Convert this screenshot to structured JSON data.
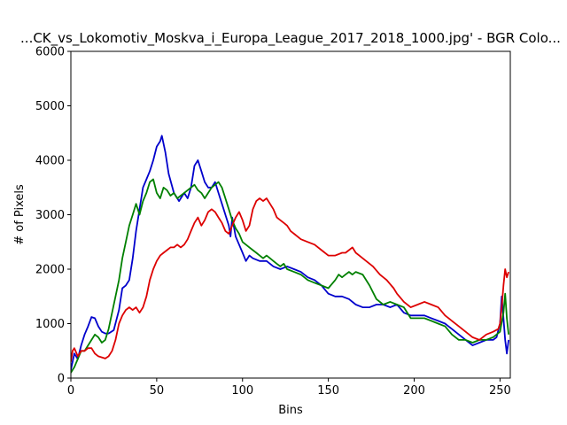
{
  "chart_data": {
    "type": "line",
    "title": "...CK_vs_Lokomotiv_Moskva_i_Europa_League_2017_2018_1000.jpg' - BGR Colo...",
    "xlabel": "Bins",
    "ylabel": "# of Pixels",
    "xlim": [
      0,
      256
    ],
    "ylim": [
      0,
      6000
    ],
    "xticks": [
      0,
      50,
      100,
      150,
      200,
      250
    ],
    "yticks": [
      0,
      1000,
      2000,
      3000,
      4000,
      5000,
      6000
    ],
    "grid": false,
    "legend": "none",
    "series": [
      {
        "color": "#0000cc",
        "points": [
          [
            0,
            150
          ],
          [
            2,
            450
          ],
          [
            4,
            350
          ],
          [
            6,
            600
          ],
          [
            8,
            800
          ],
          [
            10,
            950
          ],
          [
            12,
            1120
          ],
          [
            14,
            1100
          ],
          [
            16,
            950
          ],
          [
            18,
            850
          ],
          [
            20,
            820
          ],
          [
            22,
            820
          ],
          [
            25,
            880
          ],
          [
            28,
            1250
          ],
          [
            30,
            1650
          ],
          [
            32,
            1700
          ],
          [
            34,
            1800
          ],
          [
            36,
            2200
          ],
          [
            38,
            2700
          ],
          [
            40,
            3100
          ],
          [
            42,
            3500
          ],
          [
            44,
            3650
          ],
          [
            46,
            3800
          ],
          [
            48,
            4000
          ],
          [
            50,
            4250
          ],
          [
            52,
            4350
          ],
          [
            53,
            4450
          ],
          [
            55,
            4150
          ],
          [
            57,
            3750
          ],
          [
            60,
            3400
          ],
          [
            63,
            3250
          ],
          [
            66,
            3400
          ],
          [
            68,
            3300
          ],
          [
            70,
            3500
          ],
          [
            72,
            3900
          ],
          [
            74,
            4000
          ],
          [
            76,
            3800
          ],
          [
            78,
            3600
          ],
          [
            80,
            3500
          ],
          [
            82,
            3500
          ],
          [
            84,
            3600
          ],
          [
            86,
            3400
          ],
          [
            88,
            3200
          ],
          [
            90,
            3000
          ],
          [
            92,
            2800
          ],
          [
            93,
            2600
          ],
          [
            94,
            2950
          ],
          [
            96,
            2600
          ],
          [
            98,
            2450
          ],
          [
            100,
            2300
          ],
          [
            102,
            2150
          ],
          [
            104,
            2250
          ],
          [
            106,
            2200
          ],
          [
            110,
            2150
          ],
          [
            114,
            2150
          ],
          [
            118,
            2050
          ],
          [
            122,
            2000
          ],
          [
            126,
            2050
          ],
          [
            130,
            2000
          ],
          [
            134,
            1950
          ],
          [
            138,
            1850
          ],
          [
            142,
            1800
          ],
          [
            146,
            1700
          ],
          [
            150,
            1550
          ],
          [
            154,
            1500
          ],
          [
            158,
            1500
          ],
          [
            162,
            1450
          ],
          [
            166,
            1350
          ],
          [
            170,
            1300
          ],
          [
            174,
            1300
          ],
          [
            178,
            1350
          ],
          [
            182,
            1350
          ],
          [
            186,
            1300
          ],
          [
            190,
            1350
          ],
          [
            194,
            1200
          ],
          [
            198,
            1150
          ],
          [
            202,
            1150
          ],
          [
            206,
            1150
          ],
          [
            210,
            1100
          ],
          [
            214,
            1050
          ],
          [
            218,
            1000
          ],
          [
            222,
            900
          ],
          [
            226,
            800
          ],
          [
            230,
            700
          ],
          [
            234,
            600
          ],
          [
            238,
            650
          ],
          [
            242,
            700
          ],
          [
            246,
            700
          ],
          [
            248,
            750
          ],
          [
            250,
            1000
          ],
          [
            251,
            1500
          ],
          [
            252,
            1100
          ],
          [
            253,
            700
          ],
          [
            254,
            450
          ],
          [
            255,
            700
          ]
        ]
      },
      {
        "color": "#008000",
        "points": [
          [
            0,
            100
          ],
          [
            2,
            200
          ],
          [
            4,
            350
          ],
          [
            6,
            500
          ],
          [
            8,
            500
          ],
          [
            10,
            600
          ],
          [
            12,
            700
          ],
          [
            14,
            800
          ],
          [
            16,
            750
          ],
          [
            18,
            650
          ],
          [
            20,
            700
          ],
          [
            22,
            900
          ],
          [
            24,
            1200
          ],
          [
            26,
            1500
          ],
          [
            28,
            1800
          ],
          [
            30,
            2200
          ],
          [
            32,
            2500
          ],
          [
            34,
            2800
          ],
          [
            36,
            3000
          ],
          [
            38,
            3200
          ],
          [
            40,
            3000
          ],
          [
            42,
            3250
          ],
          [
            44,
            3400
          ],
          [
            46,
            3600
          ],
          [
            48,
            3650
          ],
          [
            50,
            3400
          ],
          [
            52,
            3300
          ],
          [
            54,
            3500
          ],
          [
            56,
            3450
          ],
          [
            58,
            3350
          ],
          [
            60,
            3400
          ],
          [
            62,
            3300
          ],
          [
            64,
            3350
          ],
          [
            66,
            3400
          ],
          [
            68,
            3450
          ],
          [
            70,
            3500
          ],
          [
            72,
            3550
          ],
          [
            74,
            3450
          ],
          [
            76,
            3400
          ],
          [
            78,
            3300
          ],
          [
            80,
            3400
          ],
          [
            82,
            3500
          ],
          [
            84,
            3550
          ],
          [
            86,
            3600
          ],
          [
            88,
            3500
          ],
          [
            90,
            3300
          ],
          [
            92,
            3100
          ],
          [
            94,
            2900
          ],
          [
            96,
            2750
          ],
          [
            98,
            2650
          ],
          [
            100,
            2500
          ],
          [
            102,
            2450
          ],
          [
            104,
            2400
          ],
          [
            106,
            2350
          ],
          [
            108,
            2300
          ],
          [
            110,
            2250
          ],
          [
            112,
            2200
          ],
          [
            114,
            2250
          ],
          [
            116,
            2200
          ],
          [
            118,
            2150
          ],
          [
            120,
            2100
          ],
          [
            122,
            2050
          ],
          [
            124,
            2100
          ],
          [
            126,
            2000
          ],
          [
            130,
            1950
          ],
          [
            134,
            1900
          ],
          [
            138,
            1800
          ],
          [
            142,
            1750
          ],
          [
            146,
            1700
          ],
          [
            150,
            1650
          ],
          [
            154,
            1800
          ],
          [
            156,
            1900
          ],
          [
            158,
            1850
          ],
          [
            160,
            1900
          ],
          [
            162,
            1950
          ],
          [
            164,
            1900
          ],
          [
            166,
            1950
          ],
          [
            170,
            1900
          ],
          [
            174,
            1700
          ],
          [
            178,
            1450
          ],
          [
            182,
            1350
          ],
          [
            186,
            1400
          ],
          [
            190,
            1350
          ],
          [
            194,
            1300
          ],
          [
            198,
            1100
          ],
          [
            202,
            1100
          ],
          [
            206,
            1100
          ],
          [
            210,
            1050
          ],
          [
            214,
            1000
          ],
          [
            218,
            950
          ],
          [
            222,
            800
          ],
          [
            226,
            700
          ],
          [
            230,
            700
          ],
          [
            234,
            650
          ],
          [
            238,
            700
          ],
          [
            242,
            700
          ],
          [
            246,
            750
          ],
          [
            250,
            850
          ],
          [
            252,
            1200
          ],
          [
            253,
            1550
          ],
          [
            254,
            1100
          ],
          [
            255,
            800
          ]
        ]
      },
      {
        "color": "#dd0000",
        "points": [
          [
            0,
            300
          ],
          [
            1,
            500
          ],
          [
            2,
            550
          ],
          [
            4,
            400
          ],
          [
            6,
            500
          ],
          [
            8,
            500
          ],
          [
            10,
            550
          ],
          [
            12,
            550
          ],
          [
            14,
            450
          ],
          [
            16,
            400
          ],
          [
            18,
            380
          ],
          [
            20,
            360
          ],
          [
            22,
            400
          ],
          [
            24,
            500
          ],
          [
            26,
            700
          ],
          [
            28,
            1000
          ],
          [
            30,
            1150
          ],
          [
            32,
            1250
          ],
          [
            34,
            1300
          ],
          [
            36,
            1250
          ],
          [
            38,
            1300
          ],
          [
            40,
            1200
          ],
          [
            42,
            1300
          ],
          [
            44,
            1500
          ],
          [
            46,
            1800
          ],
          [
            48,
            2000
          ],
          [
            50,
            2150
          ],
          [
            52,
            2250
          ],
          [
            54,
            2300
          ],
          [
            56,
            2350
          ],
          [
            58,
            2400
          ],
          [
            60,
            2400
          ],
          [
            62,
            2450
          ],
          [
            64,
            2400
          ],
          [
            66,
            2450
          ],
          [
            68,
            2550
          ],
          [
            70,
            2700
          ],
          [
            72,
            2850
          ],
          [
            74,
            2950
          ],
          [
            76,
            2800
          ],
          [
            78,
            2900
          ],
          [
            80,
            3050
          ],
          [
            82,
            3100
          ],
          [
            84,
            3050
          ],
          [
            86,
            2950
          ],
          [
            88,
            2850
          ],
          [
            90,
            2700
          ],
          [
            92,
            2650
          ],
          [
            94,
            2800
          ],
          [
            96,
            2950
          ],
          [
            98,
            3050
          ],
          [
            100,
            2900
          ],
          [
            102,
            2700
          ],
          [
            104,
            2800
          ],
          [
            106,
            3100
          ],
          [
            108,
            3250
          ],
          [
            110,
            3300
          ],
          [
            112,
            3250
          ],
          [
            114,
            3300
          ],
          [
            116,
            3200
          ],
          [
            118,
            3100
          ],
          [
            120,
            2950
          ],
          [
            122,
            2900
          ],
          [
            124,
            2850
          ],
          [
            126,
            2800
          ],
          [
            128,
            2700
          ],
          [
            130,
            2650
          ],
          [
            134,
            2550
          ],
          [
            138,
            2500
          ],
          [
            142,
            2450
          ],
          [
            146,
            2350
          ],
          [
            150,
            2250
          ],
          [
            154,
            2250
          ],
          [
            158,
            2300
          ],
          [
            160,
            2300
          ],
          [
            162,
            2350
          ],
          [
            164,
            2400
          ],
          [
            166,
            2300
          ],
          [
            168,
            2250
          ],
          [
            172,
            2150
          ],
          [
            176,
            2050
          ],
          [
            180,
            1900
          ],
          [
            184,
            1800
          ],
          [
            188,
            1650
          ],
          [
            190,
            1550
          ],
          [
            194,
            1400
          ],
          [
            198,
            1300
          ],
          [
            202,
            1350
          ],
          [
            206,
            1400
          ],
          [
            210,
            1350
          ],
          [
            214,
            1300
          ],
          [
            218,
            1150
          ],
          [
            222,
            1050
          ],
          [
            226,
            950
          ],
          [
            230,
            850
          ],
          [
            234,
            750
          ],
          [
            238,
            700
          ],
          [
            242,
            800
          ],
          [
            246,
            850
          ],
          [
            249,
            900
          ],
          [
            250,
            1000
          ],
          [
            251,
            1300
          ],
          [
            252,
            1700
          ],
          [
            253,
            2000
          ],
          [
            254,
            1850
          ],
          [
            255,
            1950
          ]
        ]
      }
    ]
  }
}
